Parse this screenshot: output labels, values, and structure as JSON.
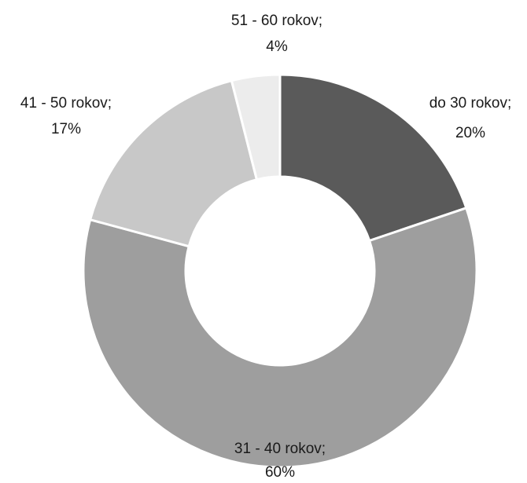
{
  "chart_data": {
    "type": "pie",
    "variant": "donut",
    "legend": "none",
    "slices": [
      {
        "label": "do 30 rokov",
        "value": 20,
        "label_text": "do 30 rokov;",
        "value_text": "20%",
        "color": "#5a5a5a"
      },
      {
        "label": "31 - 40 rokov",
        "value": 60,
        "label_text": "31 - 40 rokov;",
        "value_text": "60%",
        "color": "#9e9e9e"
      },
      {
        "label": "41 - 50 rokov",
        "value": 17,
        "label_text": "41 - 50 rokov;",
        "value_text": "17%",
        "color": "#c8c8c8"
      },
      {
        "label": "51 - 60 rokov",
        "value": 4,
        "label_text": "51 - 60 rokov;",
        "value_text": "4%",
        "color": "#ececec"
      }
    ]
  }
}
